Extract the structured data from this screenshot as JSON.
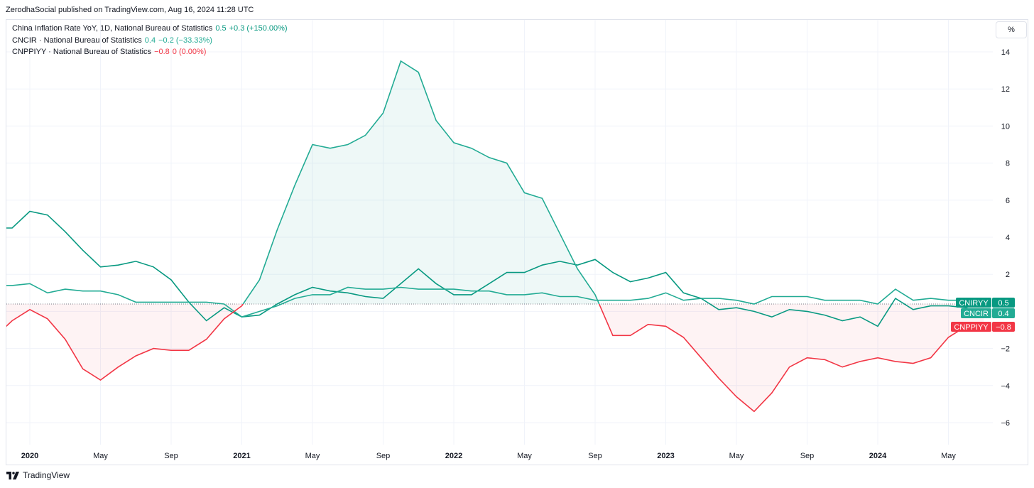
{
  "header": {
    "published_by": "ZerodhaSocial published on TradingView.com, Aug 16, 2024 11:28 UTC"
  },
  "legend": [
    {
      "label": "China Inflation Rate YoY, 1D, National Bureau of Statistics",
      "value": "0.5",
      "change": "+0.3 (+150.00%)",
      "color": "#089981"
    },
    {
      "label": "CNCIR · National Bureau of Statistics",
      "value": "0.4",
      "change": "−0.2 (−33.33%)",
      "color": "#22ab94"
    },
    {
      "label": "CNPPIYY · National Bureau of Statistics",
      "value": "−0.8",
      "change": "0 (0.00%)",
      "color": "#f23645"
    }
  ],
  "scale_button": "%",
  "footer": {
    "brand": "TradingView"
  },
  "chart_data": {
    "type": "line",
    "x": [
      "2019-11",
      "2019-12",
      "2020-01",
      "2020-02",
      "2020-03",
      "2020-04",
      "2020-05",
      "2020-06",
      "2020-07",
      "2020-08",
      "2020-09",
      "2020-10",
      "2020-11",
      "2020-12",
      "2021-01",
      "2021-02",
      "2021-03",
      "2021-04",
      "2021-05",
      "2021-06",
      "2021-07",
      "2021-08",
      "2021-09",
      "2021-10",
      "2021-11",
      "2021-12",
      "2022-01",
      "2022-02",
      "2022-03",
      "2022-04",
      "2022-05",
      "2022-06",
      "2022-07",
      "2022-08",
      "2022-09",
      "2022-10",
      "2022-11",
      "2022-12",
      "2023-01",
      "2023-02",
      "2023-03",
      "2023-04",
      "2023-05",
      "2023-06",
      "2023-07",
      "2023-08",
      "2023-09",
      "2023-10",
      "2023-11",
      "2023-12",
      "2024-01",
      "2024-02",
      "2024-03",
      "2024-04",
      "2024-05",
      "2024-06",
      "2024-07"
    ],
    "series": [
      {
        "name": "CNIRYY",
        "color": "#089981",
        "values": [
          4.5,
          4.5,
          5.4,
          5.2,
          4.3,
          3.3,
          2.4,
          2.5,
          2.7,
          2.4,
          1.7,
          0.5,
          -0.5,
          0.2,
          -0.3,
          -0.2,
          0.4,
          0.9,
          1.3,
          1.1,
          1.0,
          0.8,
          0.7,
          1.5,
          2.3,
          1.5,
          0.9,
          0.9,
          1.5,
          2.1,
          2.1,
          2.5,
          2.7,
          2.5,
          2.8,
          2.1,
          1.6,
          1.8,
          2.1,
          1.0,
          0.7,
          0.1,
          0.2,
          0.0,
          -0.3,
          0.1,
          0.0,
          -0.2,
          -0.5,
          -0.3,
          -0.8,
          0.7,
          0.1,
          0.3,
          0.3,
          0.2,
          0.5
        ]
      },
      {
        "name": "CNCIR",
        "color": "#22ab94",
        "values": [
          1.4,
          1.4,
          1.5,
          1.0,
          1.2,
          1.1,
          1.1,
          0.9,
          0.5,
          0.5,
          0.5,
          0.5,
          0.5,
          0.4,
          -0.3,
          0.0,
          0.3,
          0.7,
          0.9,
          0.9,
          1.3,
          1.2,
          1.2,
          1.3,
          1.2,
          1.2,
          1.2,
          1.1,
          1.1,
          0.9,
          0.9,
          1.0,
          0.8,
          0.8,
          0.6,
          0.6,
          0.6,
          0.7,
          1.0,
          0.6,
          0.7,
          0.7,
          0.6,
          0.4,
          0.8,
          0.8,
          0.8,
          0.6,
          0.6,
          0.6,
          0.4,
          1.2,
          0.6,
          0.7,
          0.6,
          0.6,
          0.4
        ]
      },
      {
        "name": "CNPPIYY",
        "color": "#f23645",
        "values": [
          -1.4,
          -0.5,
          0.1,
          -0.4,
          -1.5,
          -3.1,
          -3.7,
          -3.0,
          -2.4,
          -2.0,
          -2.1,
          -2.1,
          -1.5,
          -0.4,
          0.3,
          1.7,
          4.4,
          6.8,
          9.0,
          8.8,
          9.0,
          9.5,
          10.7,
          13.5,
          12.9,
          10.3,
          9.1,
          8.8,
          8.3,
          8.0,
          6.4,
          6.1,
          4.2,
          2.3,
          0.9,
          -1.3,
          -1.3,
          -0.7,
          -0.8,
          -1.4,
          -2.5,
          -3.6,
          -4.6,
          -5.4,
          -4.4,
          -3.0,
          -2.5,
          -2.6,
          -3.0,
          -2.7,
          -2.5,
          -2.7,
          -2.8,
          -2.5,
          -1.4,
          -0.8,
          -0.8
        ]
      }
    ],
    "ylim": [
      -7,
      14.8
    ],
    "y_ticks": [
      14,
      12,
      10,
      8,
      6,
      4,
      2,
      0,
      -2,
      -4,
      -6
    ],
    "y_tick_labels": [
      "14",
      "12",
      "10",
      "8",
      "6",
      "4",
      "2",
      "",
      "−2",
      "−4",
      "−6"
    ],
    "x_ticks": [
      {
        "date": "2020-01",
        "label": "2020",
        "bold": true
      },
      {
        "date": "2020-05",
        "label": "May"
      },
      {
        "date": "2020-09",
        "label": "Sep"
      },
      {
        "date": "2021-01",
        "label": "2021",
        "bold": true
      },
      {
        "date": "2021-05",
        "label": "May"
      },
      {
        "date": "2021-09",
        "label": "Sep"
      },
      {
        "date": "2022-01",
        "label": "2022",
        "bold": true
      },
      {
        "date": "2022-05",
        "label": "May"
      },
      {
        "date": "2022-09",
        "label": "Sep"
      },
      {
        "date": "2023-01",
        "label": "2023",
        "bold": true
      },
      {
        "date": "2023-05",
        "label": "May"
      },
      {
        "date": "2023-09",
        "label": "Sep"
      },
      {
        "date": "2024-01",
        "label": "2024",
        "bold": true
      },
      {
        "date": "2024-05",
        "label": "May"
      }
    ],
    "labels": [
      {
        "name": "CNIRYY",
        "value": "0.5",
        "color": "#089981",
        "name_color": "#089981"
      },
      {
        "name": "CNCIR",
        "value": "0.4",
        "color": "#22ab94",
        "name_color": "#22ab94"
      },
      {
        "name": "CNPPIYY",
        "value": "−0.8",
        "color": "#f23645",
        "name_color": "#f23645"
      }
    ],
    "baseline": 0.4,
    "fill_series": "CNPPIYY",
    "fill_up_color": "#22ab94",
    "fill_down_color": "#f23645",
    "grid": true
  }
}
